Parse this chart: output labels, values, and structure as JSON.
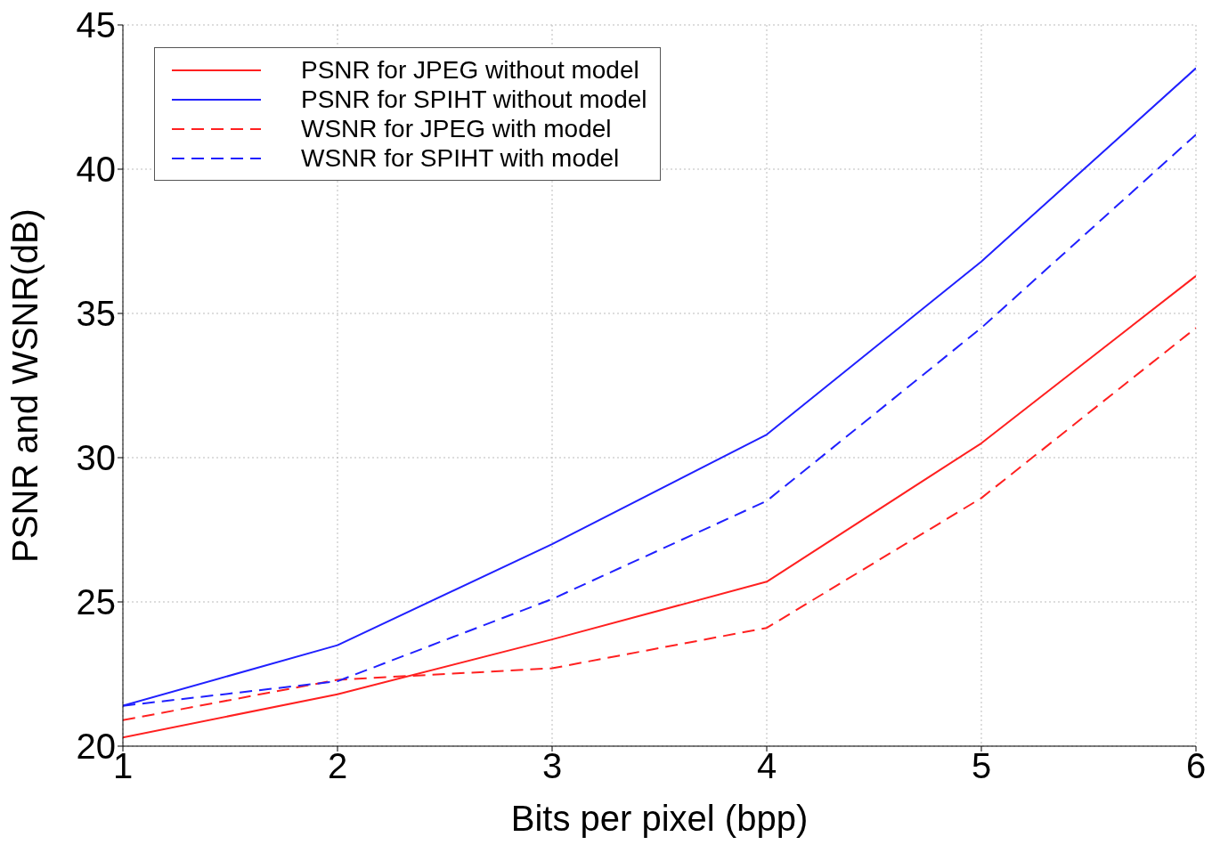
{
  "chart_data": {
    "type": "line",
    "xlabel": "Bits per pixel (bpp)",
    "ylabel": "PSNR and WSNR(dB)",
    "x": [
      1,
      2,
      3,
      4,
      5,
      6
    ],
    "series": [
      {
        "name": "PSNR for JPEG without model",
        "color": "#ff2020",
        "line_style": "solid",
        "values": [
          20.3,
          21.8,
          23.7,
          25.7,
          30.5,
          36.3
        ]
      },
      {
        "name": "PSNR for SPIHT without model",
        "color": "#2020ff",
        "line_style": "solid",
        "values": [
          21.4,
          23.5,
          27.0,
          30.8,
          36.8,
          43.5
        ]
      },
      {
        "name": "WSNR for JPEG with model",
        "color": "#ff2020",
        "line_style": "dashed",
        "values": [
          20.9,
          22.3,
          22.7,
          24.1,
          28.6,
          34.5
        ]
      },
      {
        "name": "WSNR for SPIHT with model",
        "color": "#2020ff",
        "line_style": "dashed",
        "values": [
          21.4,
          22.25,
          25.1,
          28.5,
          34.5,
          41.2
        ]
      }
    ],
    "xlim": [
      1,
      6
    ],
    "xticks": [
      1,
      2,
      3,
      4,
      5,
      6
    ],
    "ylim": [
      20,
      45
    ],
    "yticks": [
      20,
      25,
      30,
      35,
      40,
      45
    ],
    "grid": true,
    "legend": "top left",
    "marker": "none"
  }
}
